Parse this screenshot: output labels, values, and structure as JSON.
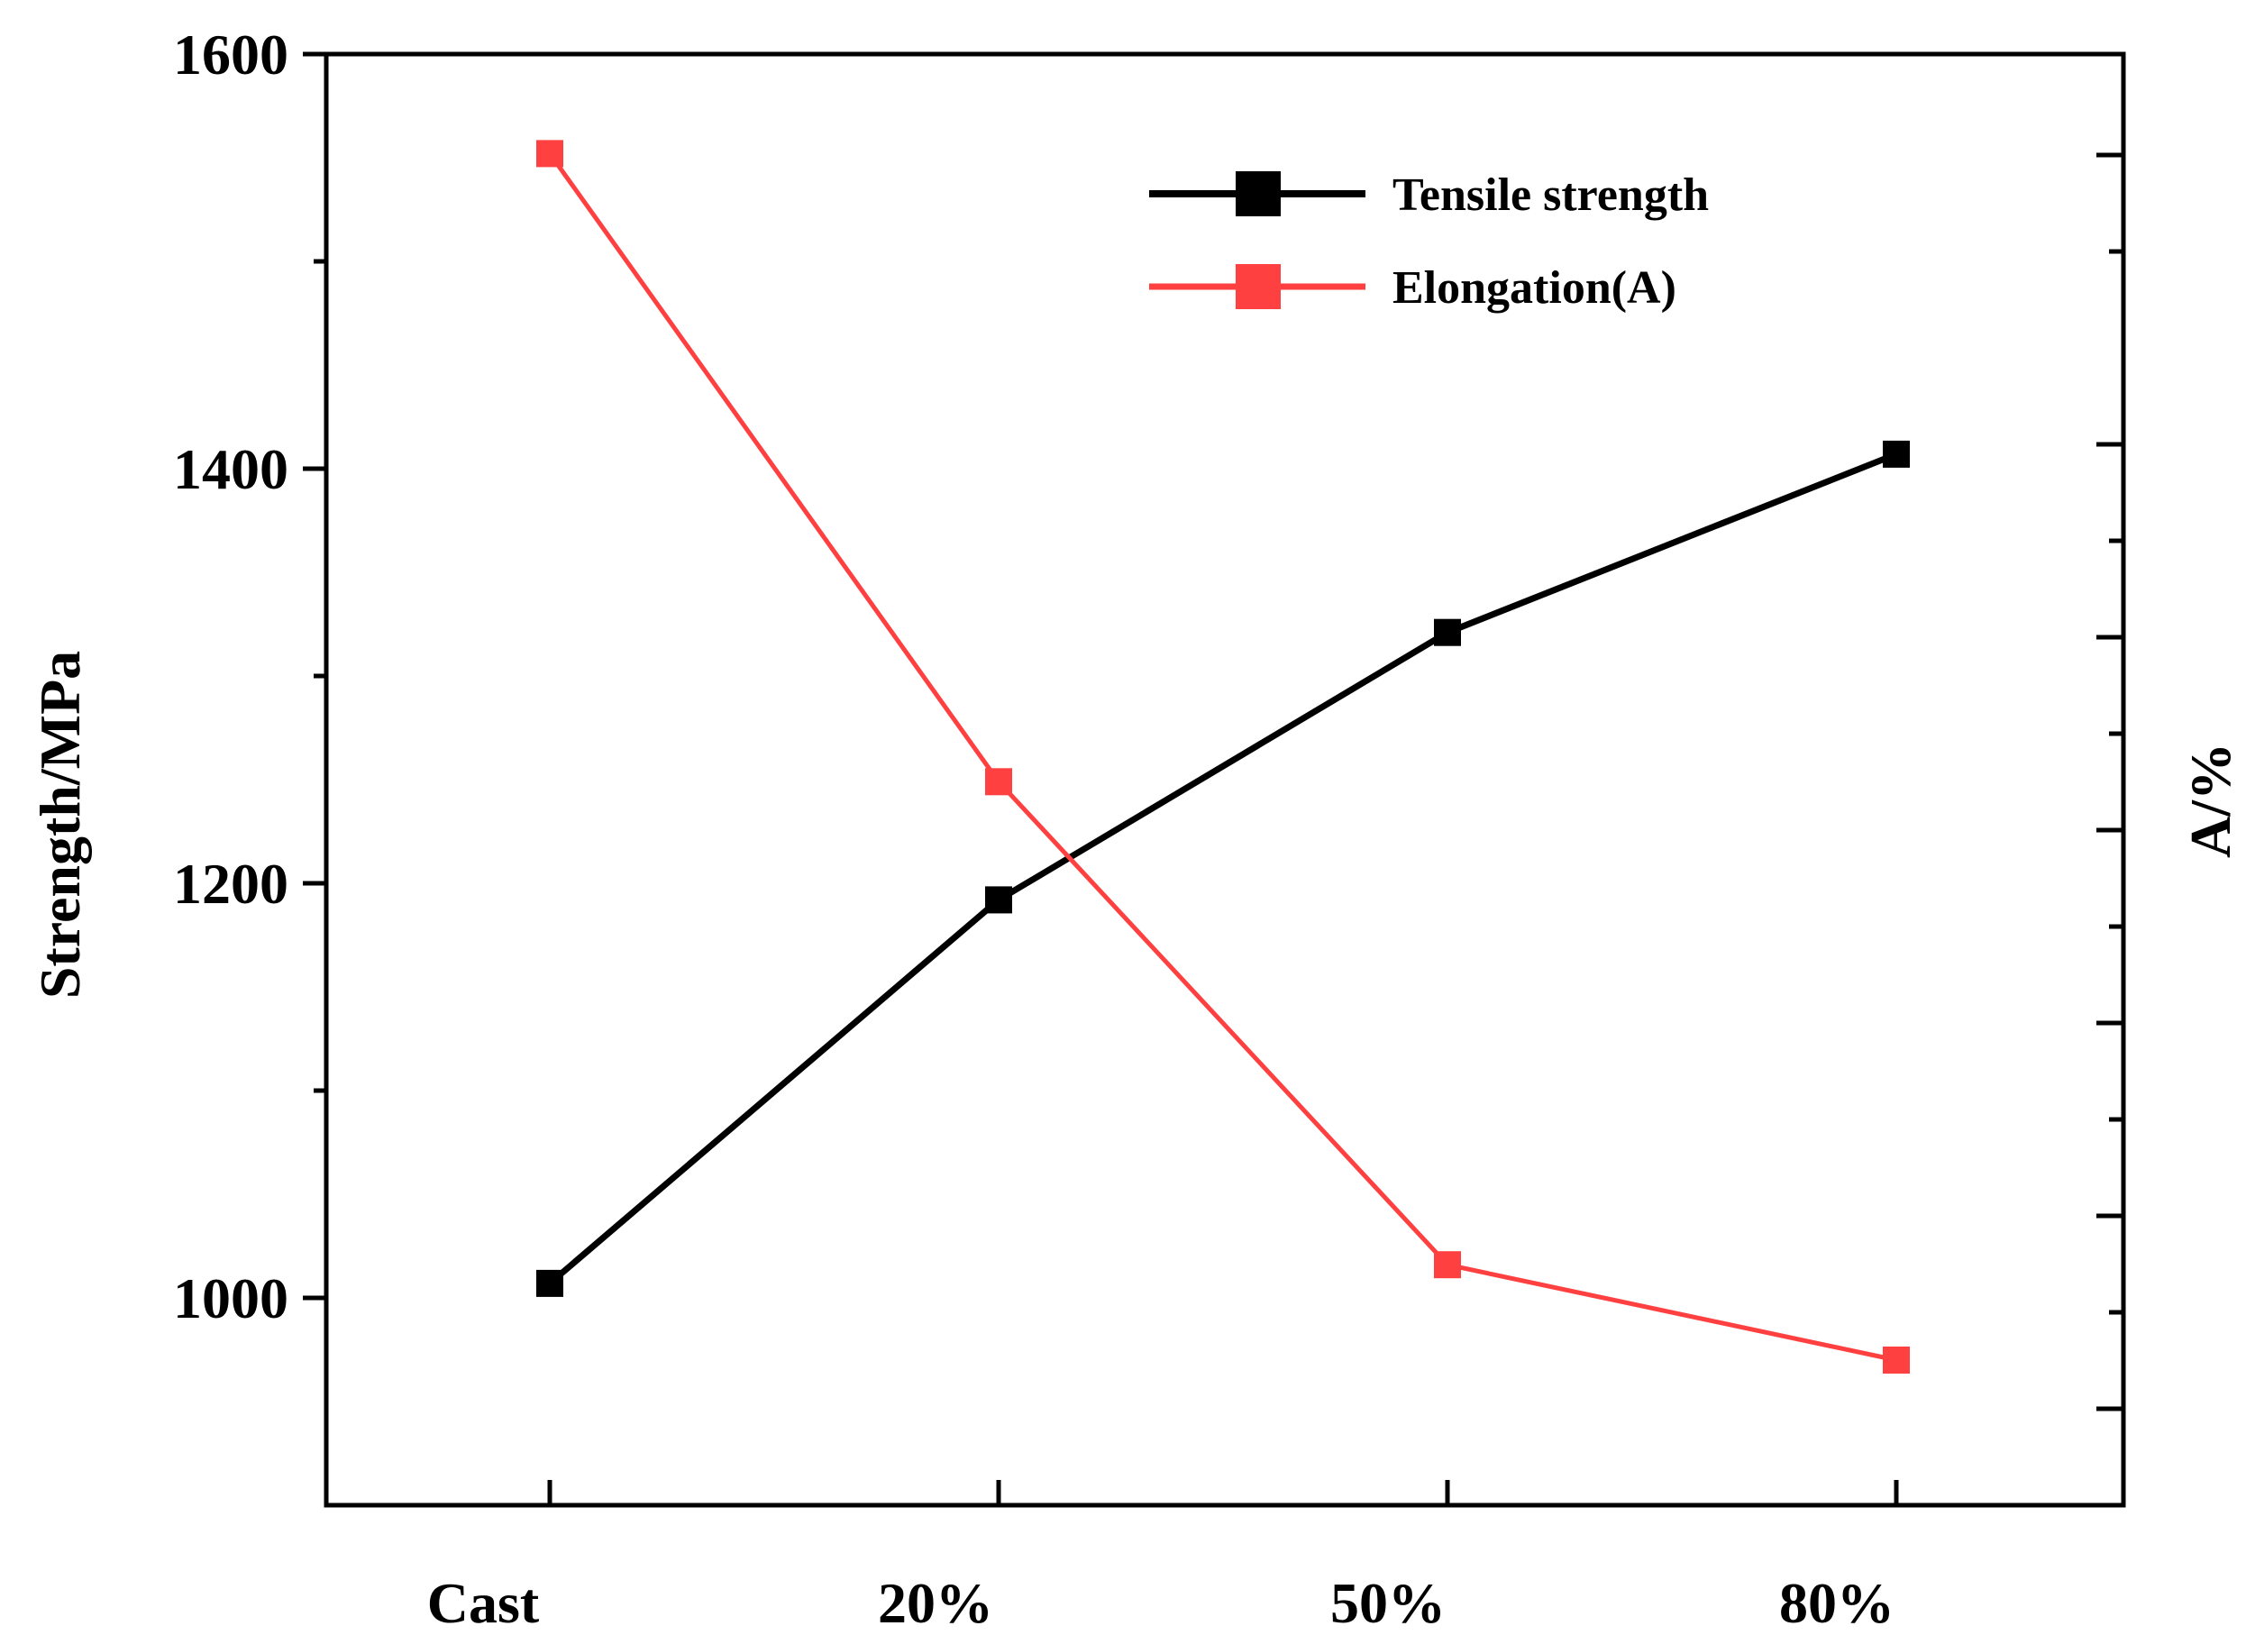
{
  "chart_data": {
    "type": "line",
    "categories": [
      "Cast",
      "20%",
      "50%",
      "80%"
    ],
    "series": [
      {
        "name": "Tensile strength",
        "axis": "left",
        "color": "#000000",
        "values": [
          1007,
          1192,
          1321,
          1407
        ]
      },
      {
        "name": "Elongation(A)",
        "axis": "right",
        "color": "#ff4040",
        "values": [
          1552,
          1249,
          1016,
          970
        ]
      }
    ],
    "xlabel": "",
    "ylabel": "Strength/MPa",
    "ylabel_right": "A/%",
    "ylim": [
      900,
      1600
    ],
    "yticks": [
      "1000",
      "1200",
      "1400",
      "1600"
    ],
    "legend_position": "top-right",
    "grid": false
  }
}
